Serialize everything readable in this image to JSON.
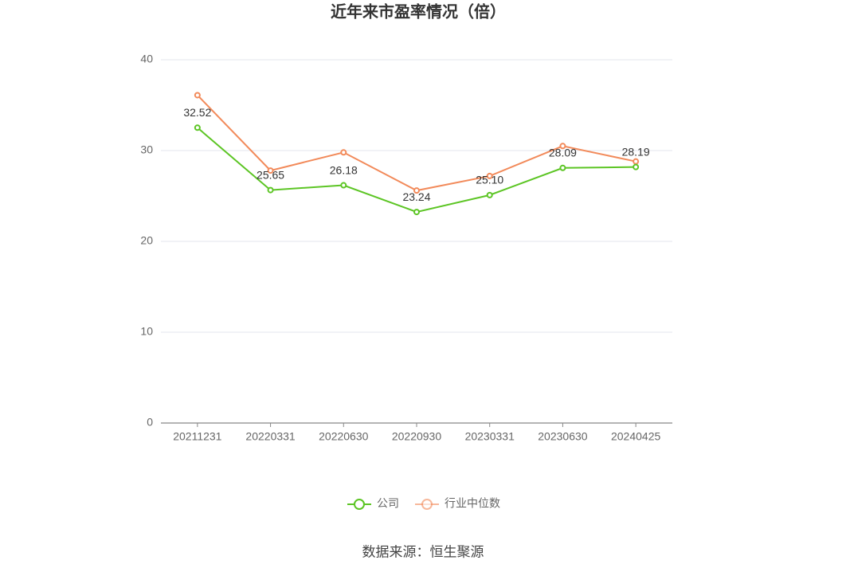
{
  "chart_data": {
    "type": "line",
    "title": "近年来市盈率情况（倍）",
    "categories": [
      "20211231",
      "20220331",
      "20220630",
      "20220930",
      "20230331",
      "20230630",
      "20240425"
    ],
    "series": [
      {
        "name": "公司",
        "color": "#5cc524",
        "values": [
          32.52,
          25.65,
          26.18,
          23.24,
          25.1,
          28.09,
          28.19
        ],
        "value_labels": [
          "32.52",
          "25.65",
          "26.18",
          "23.24",
          "25.10",
          "28.09",
          "28.19"
        ]
      },
      {
        "name": "行业中位数",
        "color": "#f28a5a",
        "values": [
          36.1,
          27.8,
          29.8,
          25.6,
          27.2,
          30.5,
          28.8
        ]
      }
    ],
    "ylim": [
      0,
      40
    ],
    "yticks": [
      0,
      10,
      20,
      30,
      40
    ],
    "grid": true,
    "source": "数据来源：恒生聚源"
  }
}
